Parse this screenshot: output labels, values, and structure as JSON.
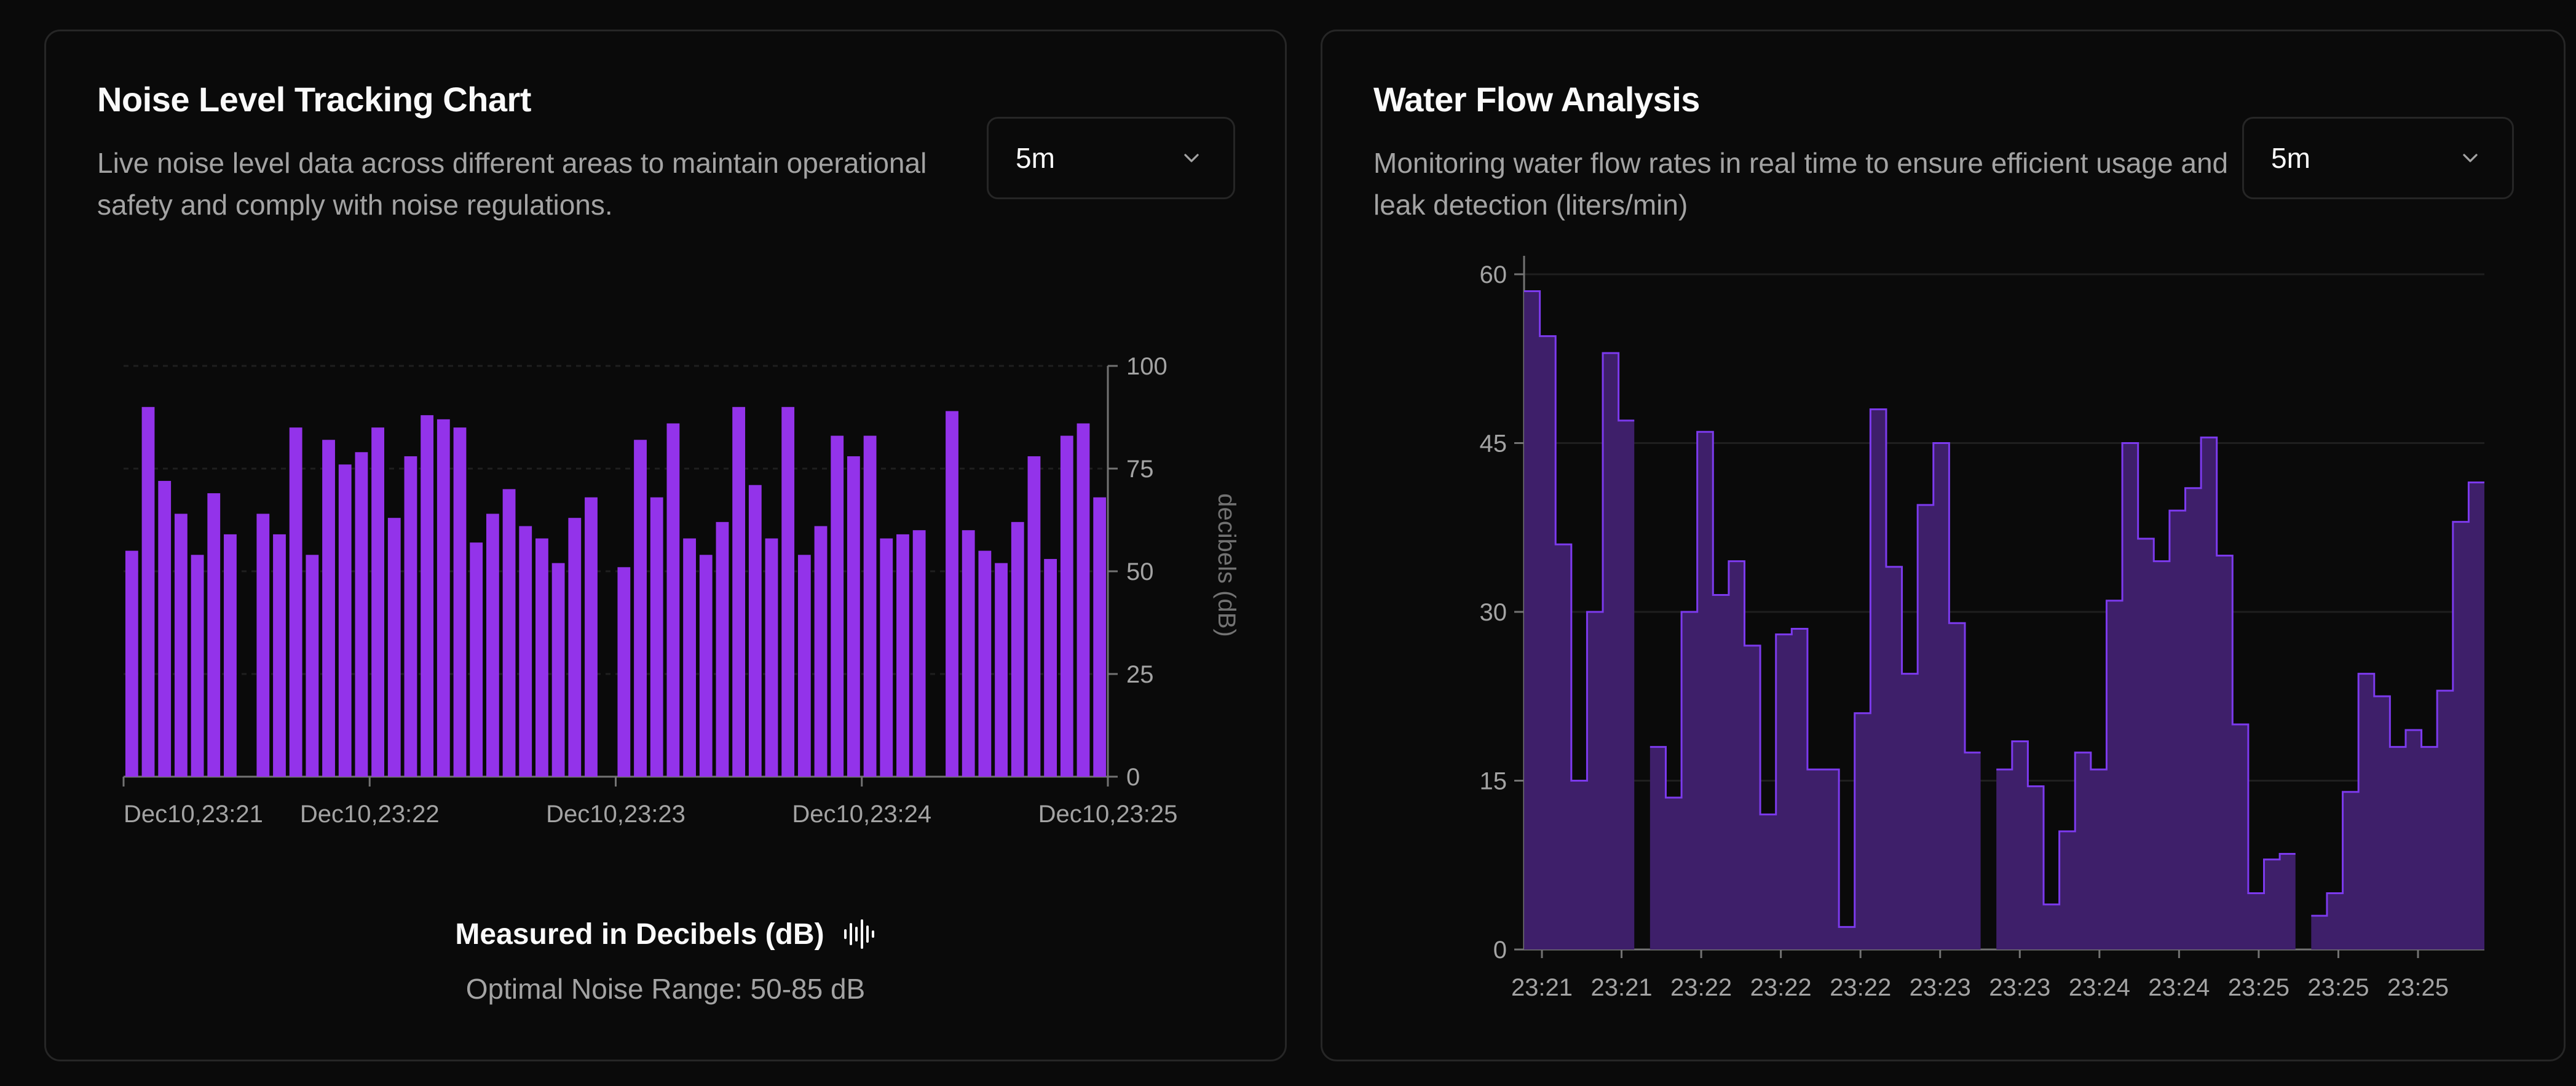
{
  "noise_card": {
    "title": "Noise Level Tracking Chart",
    "description": "Live noise level data across different areas to maintain operational safety and comply with noise regulations.",
    "range_select": {
      "value": "5m"
    },
    "footer_title": "Measured in Decibels (dB)",
    "footer_subtitle": "Optimal Noise Range: 50-85 dB",
    "footer_icon": "audio-wave-icon"
  },
  "water_card": {
    "title": "Water Flow Analysis",
    "description": "Monitoring water flow rates in real time to ensure efficient usage and leak detection (liters/min)",
    "range_select": {
      "value": "5m"
    }
  },
  "colors": {
    "bar": "#9333ea",
    "water_line": "#7c3aed",
    "water_fill": "#3e1f6a",
    "grid": "#1f1f1f",
    "tick_text": "#a3a3a3",
    "border": "#262626"
  },
  "chart_data": [
    {
      "type": "bar",
      "ylabel": "decibels (dB)",
      "ylim": [
        0,
        100
      ],
      "yticks": [
        0,
        25,
        50,
        75,
        100
      ],
      "y_axis_side": "right",
      "xticks": [
        "Dec10,23:21",
        "Dec10,23:22",
        "Dec10,23:23",
        "Dec10,23:24",
        "Dec10,23:25"
      ],
      "grid": true,
      "values": [
        55,
        90,
        72,
        64,
        54,
        69,
        59,
        null,
        64,
        59,
        85,
        54,
        82,
        76,
        79,
        85,
        63,
        78,
        88,
        87,
        85,
        57,
        64,
        70,
        61,
        58,
        52,
        63,
        68,
        null,
        51,
        82,
        68,
        86,
        58,
        54,
        62,
        90,
        71,
        58,
        90,
        54,
        61,
        83,
        78,
        83,
        58,
        59,
        60,
        null,
        89,
        60,
        55,
        52,
        62,
        78,
        53,
        83,
        86,
        68
      ]
    },
    {
      "type": "area",
      "ylim": [
        0,
        60
      ],
      "yticks": [
        0,
        15,
        30,
        45,
        60
      ],
      "xticks": [
        "23:21",
        "23:21",
        "23:22",
        "23:22",
        "23:22",
        "23:23",
        "23:23",
        "23:24",
        "23:24",
        "23:25",
        "23:25",
        "23:25"
      ],
      "grid": true,
      "step": true,
      "values": [
        58.5,
        54.5,
        36,
        15,
        30,
        53,
        47,
        null,
        18,
        13.5,
        30,
        46,
        31.5,
        34.5,
        27,
        12,
        28,
        28.5,
        16,
        16,
        2,
        21,
        48,
        34,
        24.5,
        39.5,
        45,
        29,
        17.5,
        null,
        16,
        18.5,
        14.5,
        4,
        10.5,
        17.5,
        16,
        31,
        45,
        36.5,
        34.5,
        39,
        41,
        45.5,
        35,
        20,
        5,
        8,
        8.5,
        null,
        3,
        5,
        14,
        24.5,
        22.5,
        18,
        19.5,
        18,
        23,
        38,
        41.5
      ]
    }
  ]
}
